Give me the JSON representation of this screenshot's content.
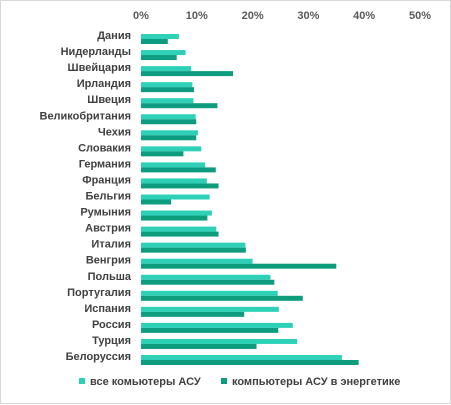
{
  "chart_data": {
    "type": "bar",
    "orientation": "horizontal",
    "categories": [
      "Дания",
      "Нидерланды",
      "Швейцария",
      "Ирландия",
      "Швеция",
      "Великобритания",
      "Чехия",
      "Словакия",
      "Германия",
      "Франция",
      "Бельгия",
      "Румыния",
      "Австрия",
      "Италия",
      "Венгрия",
      "Польша",
      "Португалия",
      "Испания",
      "Россия",
      "Турция",
      "Белоруссия"
    ],
    "series": [
      {
        "name": "все комьютеры АСУ",
        "color": "#2ed1b8",
        "values": [
          6.8,
          8.0,
          9.0,
          9.2,
          9.4,
          9.8,
          10.2,
          10.8,
          11.5,
          11.8,
          12.3,
          12.7,
          13.5,
          18.7,
          20.0,
          23.2,
          24.5,
          24.7,
          27.2,
          28.0,
          36.0
        ]
      },
      {
        "name": "компьютеры АСУ в энергетике",
        "color": "#0e9c7f",
        "values": [
          4.8,
          6.4,
          16.5,
          9.5,
          13.7,
          9.9,
          9.9,
          7.6,
          13.4,
          13.9,
          5.4,
          11.9,
          13.9,
          18.8,
          35.0,
          23.9,
          29.0,
          18.5,
          24.6,
          20.7,
          39.0
        ]
      }
    ],
    "xticks": [
      "0%",
      "10%",
      "20%",
      "30%",
      "40%",
      "50%"
    ],
    "xlim": [
      0,
      50
    ],
    "xaxis_position": "top",
    "grid": false,
    "legend": "bottom",
    "title": "",
    "xlabel": "",
    "ylabel": ""
  }
}
